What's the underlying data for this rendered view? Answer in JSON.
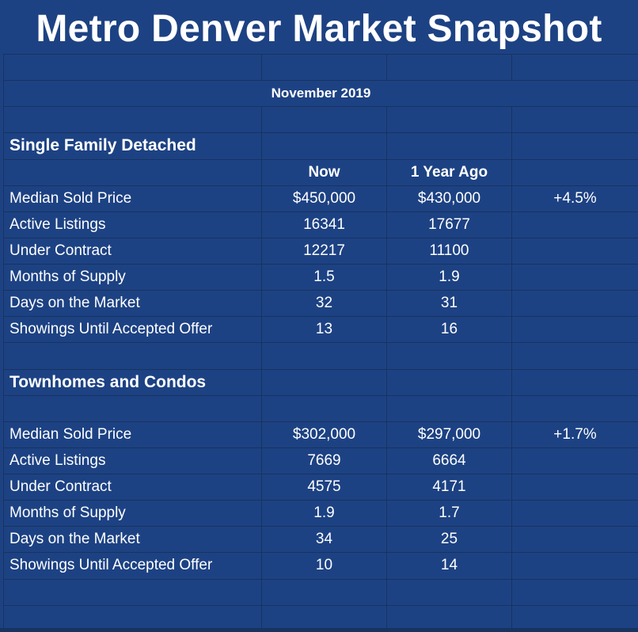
{
  "title": "Metro Denver Market Snapshot",
  "period": "November 2019",
  "columns": {
    "now": "Now",
    "year_ago": "1 Year Ago"
  },
  "sections": [
    {
      "name": "Single Family Detached",
      "rows": [
        {
          "label": "Median Sold Price",
          "now": "$450,000",
          "year_ago": "$430,000",
          "change": "+4.5%"
        },
        {
          "label": "Active Listings",
          "now": "16341",
          "year_ago": "17677",
          "change": ""
        },
        {
          "label": "Under Contract",
          "now": "12217",
          "year_ago": "11100",
          "change": ""
        },
        {
          "label": "Months of Supply",
          "now": "1.5",
          "year_ago": "1.9",
          "change": ""
        },
        {
          "label": "Days on the Market",
          "now": "32",
          "year_ago": "31",
          "change": ""
        },
        {
          "label": "Showings Until Accepted Offer",
          "now": "13",
          "year_ago": "16",
          "change": ""
        }
      ]
    },
    {
      "name": "Townhomes and Condos",
      "rows": [
        {
          "label": "Median Sold Price",
          "now": "$302,000",
          "year_ago": "$297,000",
          "change": "+1.7%"
        },
        {
          "label": "Active Listings",
          "now": "7669",
          "year_ago": "6664",
          "change": ""
        },
        {
          "label": "Under Contract",
          "now": "4575",
          "year_ago": "4171",
          "change": ""
        },
        {
          "label": "Months of Supply",
          "now": "1.9",
          "year_ago": "1.7",
          "change": ""
        },
        {
          "label": "Days on the Market",
          "now": "34",
          "year_ago": "25",
          "change": ""
        },
        {
          "label": "Showings Until Accepted Offer",
          "now": "10",
          "year_ago": "14",
          "change": ""
        }
      ]
    }
  ],
  "colors": {
    "background": "#1d4283",
    "gridline": "#17335f",
    "text": "#ffffff"
  }
}
